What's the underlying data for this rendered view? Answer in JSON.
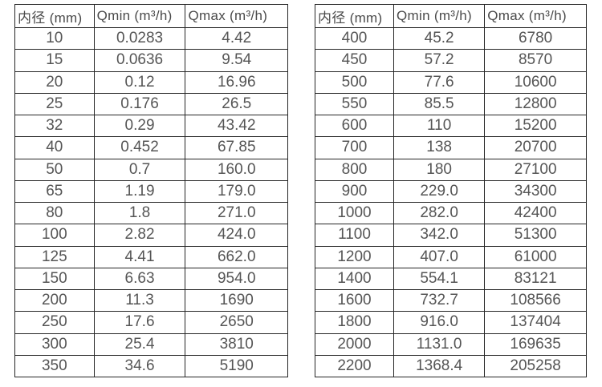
{
  "page": {
    "background": "#ffffff",
    "text_color": "#4f4f4f",
    "border_color": "#262626"
  },
  "tables": [
    {
      "name": "small-diameter-flow-table",
      "headers": [
        "内径 (mm)",
        "Qmin (m³/h)",
        "Qmax (m³/h)"
      ],
      "rows": [
        [
          "10",
          "0.0283",
          "4.42"
        ],
        [
          "15",
          "0.0636",
          "9.54"
        ],
        [
          "20",
          "0.12",
          "16.96"
        ],
        [
          "25",
          "0.176",
          "26.5"
        ],
        [
          "32",
          "0.29",
          "43.42"
        ],
        [
          "40",
          "0.452",
          "67.85"
        ],
        [
          "50",
          "0.7",
          "160.0"
        ],
        [
          "65",
          "1.19",
          "179.0"
        ],
        [
          "80",
          "1.8",
          "271.0"
        ],
        [
          "100",
          "2.82",
          "424.0"
        ],
        [
          "125",
          "4.41",
          "662.0"
        ],
        [
          "150",
          "6.63",
          "954.0"
        ],
        [
          "200",
          "11.3",
          "1690"
        ],
        [
          "250",
          "17.6",
          "2650"
        ],
        [
          "300",
          "25.4",
          "3810"
        ],
        [
          "350",
          "34.6",
          "5190"
        ]
      ]
    },
    {
      "name": "large-diameter-flow-table",
      "headers": [
        "内径 (mm)",
        "Qmin (m³/h)",
        "Qmax (m³/h)"
      ],
      "rows": [
        [
          "400",
          "45.2",
          "6780"
        ],
        [
          "450",
          "57.2",
          "8570"
        ],
        [
          "500",
          "77.6",
          "10600"
        ],
        [
          "550",
          "85.5",
          "12800"
        ],
        [
          "600",
          "110",
          "15200"
        ],
        [
          "700",
          "138",
          "20700"
        ],
        [
          "800",
          "180",
          "27100"
        ],
        [
          "900",
          "229.0",
          "34300"
        ],
        [
          "1000",
          "282.0",
          "42400"
        ],
        [
          "1100",
          "342.0",
          "51300"
        ],
        [
          "1200",
          "407.0",
          "61000"
        ],
        [
          "1400",
          "554.1",
          "83121"
        ],
        [
          "1600",
          "732.7",
          "108566"
        ],
        [
          "1800",
          "916.0",
          "137404"
        ],
        [
          "2000",
          "1131.0",
          "169635"
        ],
        [
          "2200",
          "1368.4",
          "205258"
        ]
      ]
    }
  ]
}
